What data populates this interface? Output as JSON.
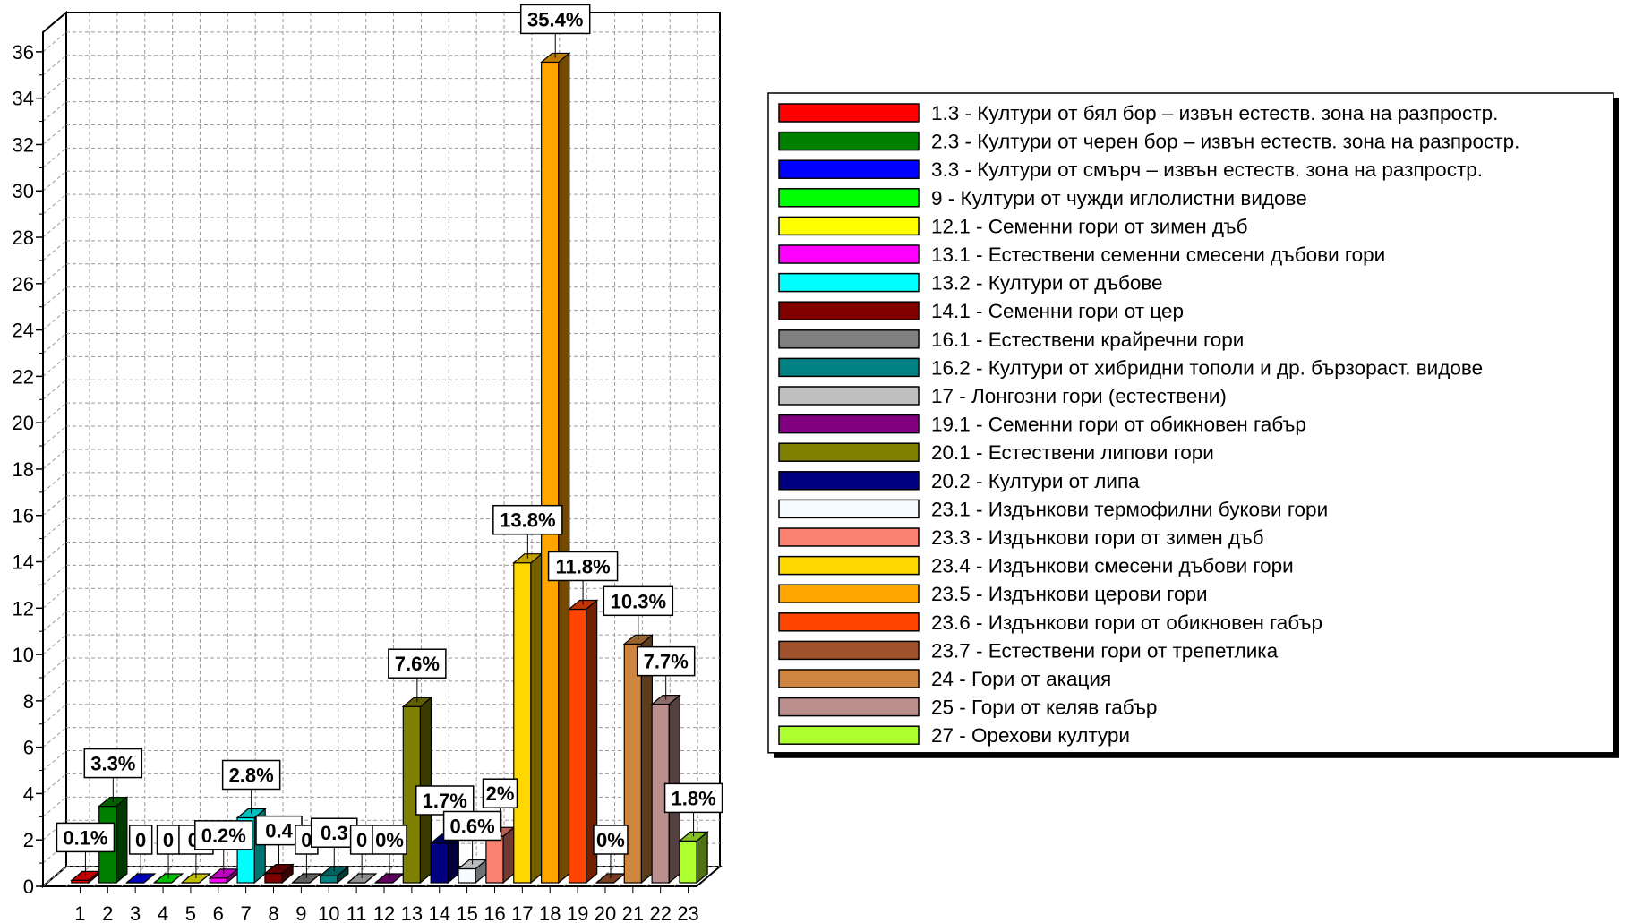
{
  "chart_data": {
    "type": "bar",
    "title": "",
    "xlabel": "",
    "ylabel": "",
    "ylim": [
      0,
      37
    ],
    "y_ticks": [
      "0",
      "2",
      "4",
      "6",
      "8",
      "10",
      "12",
      "14",
      "16",
      "18",
      "20",
      "22",
      "24",
      "26",
      "28",
      "30",
      "32",
      "34",
      "36"
    ],
    "grid": true,
    "three_d": true,
    "legend_position": "right",
    "categories": [
      "1",
      "2",
      "3",
      "4",
      "5",
      "6",
      "7",
      "8",
      "9",
      "10",
      "11",
      "12",
      "13",
      "14",
      "15",
      "16",
      "17",
      "18",
      "19",
      "20",
      "21",
      "22",
      "23"
    ],
    "values": [
      0.1,
      3.3,
      0,
      0,
      0,
      0.2,
      2.8,
      0.4,
      0,
      0.3,
      0,
      0,
      7.6,
      1.7,
      0.6,
      2,
      13.8,
      35.4,
      11.8,
      0,
      10.3,
      7.7,
      1.8
    ],
    "data_labels": [
      "0.1%",
      "3.3%",
      "0",
      "0",
      "0.",
      "0.2%",
      "2.8%",
      "0.4",
      "0",
      "0.3",
      "0",
      "0%",
      "7.6%",
      "1.7%",
      "0.6%",
      "2%",
      "13.8%",
      "35.4%",
      "11.8%",
      "0%",
      "10.3%",
      "7.7%",
      "1.8%"
    ],
    "bar_colors": [
      "#ff0000",
      "#008000",
      "#0000ff",
      "#00ff00",
      "#ffff00",
      "#ff00ff",
      "#00ffff",
      "#800000",
      "#808080",
      "#008080",
      "#c0c0c0",
      "#800080",
      "#808000",
      "#000080",
      "#f5fbff",
      "#fa8072",
      "#ffd700",
      "#ffa500",
      "#ff4500",
      "#a0522d",
      "#cd853f",
      "#bc8f8f",
      "#adff2f"
    ],
    "legend": [
      "1.3 - Култури от бял бор – извън естеств. зона на разпростр.",
      "2.3 - Култури от черен бор – извън естеств. зона на разпростр.",
      "3.3 - Култури от смърч – извън естеств. зона на разпростр.",
      "9 - Култури от чужди иглолистни видове",
      "12.1 - Семенни гори от зимен дъб",
      "13.1 - Естествени семенни смесени дъбови гори",
      "13.2 - Култури от дъбове",
      "14.1 - Семенни гори от цер",
      "16.1 - Естествени крайречни гори",
      "16.2 - Култури от хибридни тополи и др. бързораст. видове",
      "17 - Лонгозни гори (естествени)",
      "19.1 - Семенни гори от обикновен габър",
      "20.1 - Естествени липови гори",
      "20.2 - Култури от липа",
      "23.1 - Издънкови термофилни букови гори",
      "23.3 - Издънкови гори от зимен дъб",
      "23.4 - Издънкови смесени дъбови гори",
      "23.5 - Издънкови церови гори",
      "23.6 - Издънкови гори от обикновен габър",
      "23.7 - Естествени гори от трепетлика",
      "24 - Гори от акация",
      "25 - Гори от келяв габър",
      "27 - Орехови култури"
    ]
  }
}
